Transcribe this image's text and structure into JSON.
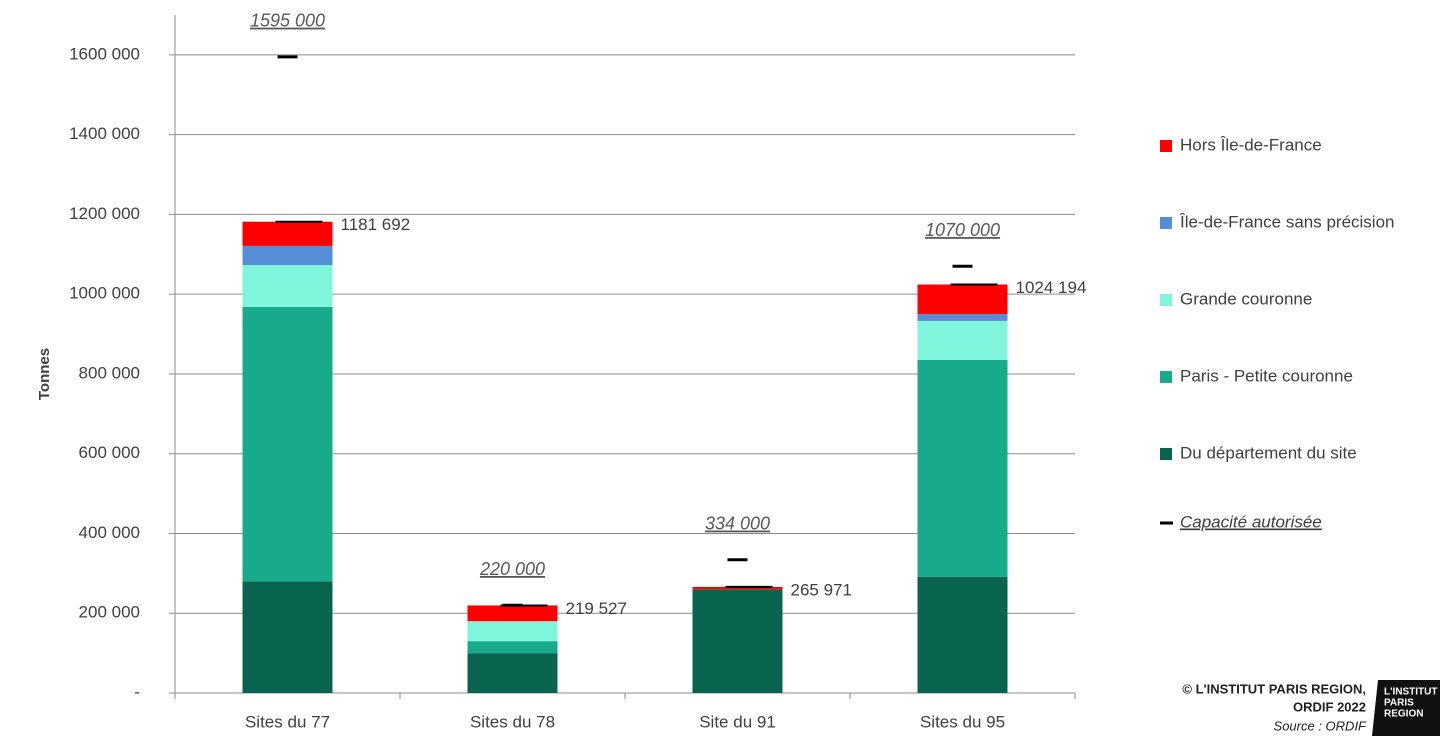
{
  "chart_data": {
    "type": "stacked_bar",
    "y_label": "Tonnes",
    "categories": [
      "Sites du 77",
      "Sites du 78",
      "Site du 91",
      "Sites du 95"
    ],
    "series": [
      {
        "name": "Du département du site",
        "color": "#09644f",
        "values": [
          280000,
          100000,
          260000,
          291000
        ]
      },
      {
        "name": "Paris - Petite couronne",
        "color": "#17ab8b",
        "values": [
          688000,
          30000,
          0,
          544000
        ]
      },
      {
        "name": "Grande couronne",
        "color": "#7ff5dc",
        "values": [
          105000,
          50000,
          0,
          98000
        ]
      },
      {
        "name": "Île-de-France sans précision",
        "color": "#558ed5",
        "values": [
          48000,
          0,
          0,
          17000
        ]
      },
      {
        "name": "Hors Île-de-France",
        "color": "#ff0000",
        "values": [
          60692,
          39527,
          5971,
          74194
        ]
      }
    ],
    "totals": [
      1181692,
      219527,
      265971,
      1024194
    ],
    "total_labels": [
      "1181 692",
      "219 527",
      "265 971",
      "1024 194"
    ],
    "capacity": {
      "name": "Capacité autorisée",
      "color": "#000000",
      "values": [
        1595000,
        220000,
        334000,
        1070000
      ],
      "value_labels": [
        "1595 000",
        "220 000",
        "334 000",
        "1070 000"
      ]
    },
    "ylim": [
      0,
      1700000
    ],
    "yticks": [
      {
        "value": 0,
        "label": "-"
      },
      {
        "value": 200000,
        "label": "200 000"
      },
      {
        "value": 400000,
        "label": "400 000"
      },
      {
        "value": 600000,
        "label": "600 000"
      },
      {
        "value": 800000,
        "label": "800 000"
      },
      {
        "value": 1000000,
        "label": "1000 000"
      },
      {
        "value": 1200000,
        "label": "1200 000"
      },
      {
        "value": 1400000,
        "label": "1400 000"
      },
      {
        "value": 1600000,
        "label": "1600 000"
      }
    ],
    "grid": true,
    "credit": [
      "© L'INSTITUT PARIS REGION,",
      "ORDIF 2022"
    ],
    "source": "Source : ORDIF",
    "logo": [
      "L'INSTITUT",
      "PARIS",
      "REGION"
    ]
  }
}
